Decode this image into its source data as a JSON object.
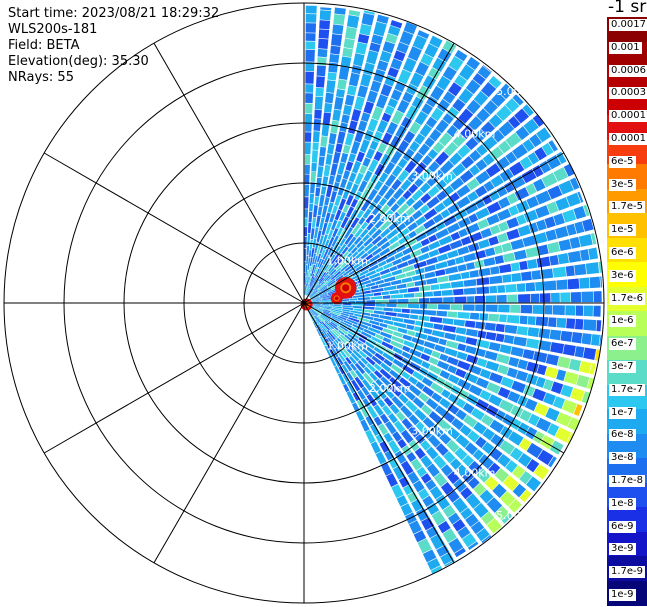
{
  "info": {
    "start_time": "Start time: 2023/08/21 18:29:32",
    "instrument": "WLS200s-181",
    "field": "Field: BETA",
    "elevation": "Elevation(deg): 35.30",
    "nrays": "NRays: 55"
  },
  "colorbar": {
    "unit_label": "-1 sr",
    "colors": [
      "#8b0000",
      "#a00000",
      "#b40000",
      "#cc0000",
      "#e21010",
      "#f73c0e",
      "#ff7a00",
      "#ff9a00",
      "#ffc000",
      "#ffe000",
      "#ffff00",
      "#e4ff2e",
      "#b8ff5a",
      "#8cf08c",
      "#5adcc8",
      "#2cc8f0",
      "#1eaaf0",
      "#1e8cf0",
      "#1e6ef0",
      "#1e50f0",
      "#1a30e6",
      "#1414c8",
      "#0c0ca0",
      "#060678"
    ],
    "labels": [
      "0.0017",
      "0.001",
      "0.0006",
      "0.0003",
      "0.00017",
      "0.0001",
      "6e-5",
      "3e-5",
      "1.7e-5",
      "1e-5",
      "6e-6",
      "3e-6",
      "1.7e-6",
      "1e-6",
      "6e-7",
      "3e-7",
      "1.7e-7",
      "1e-7",
      "6e-8",
      "3e-8",
      "1.7e-8",
      "1e-8",
      "6e-9",
      "3e-9",
      "1.7e-9",
      "1e-9"
    ]
  },
  "chart_data": {
    "type": "heatmap",
    "title": "",
    "field": "BETA",
    "nrays": 55,
    "range_rings": [
      "1.00km",
      "2.00km",
      "3.00km",
      "4.00km",
      "5.00km"
    ],
    "sector_degrees": [
      0,
      155
    ],
    "spoke_angles_deg": [
      0,
      30,
      60,
      90,
      120,
      150,
      180,
      210,
      240,
      270,
      300,
      330
    ],
    "note_values": "backscatter shown as color; dominant level about 1e-7 to 6e-8, hot spots near 1 km about 0.0006"
  }
}
